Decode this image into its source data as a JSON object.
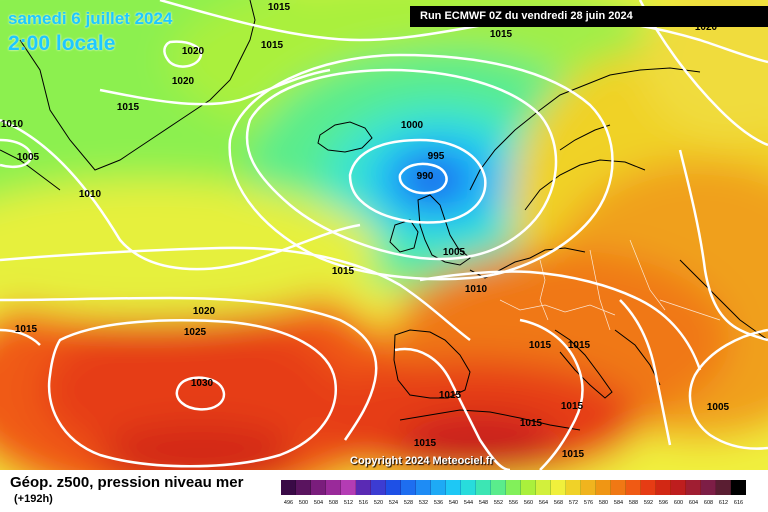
{
  "header": {
    "date": "samedi 6 juillet 2024",
    "time": "2:00 locale",
    "run": "Run ECMWF 0Z du vendredi 28 juin 2024"
  },
  "footer": {
    "parameter": "Géop. z500, pression niveau mer",
    "lead": "(+192h)",
    "copyright": "Copyright 2024 Meteociel.fr"
  },
  "colors": {
    "low_core": "#1e5ad2",
    "high_core": "#e61e14",
    "isobar": "#ffffff",
    "coastline": "#000000"
  },
  "scale": {
    "labels": [
      "496",
      "500",
      "504",
      "508",
      "512",
      "516",
      "520",
      "524",
      "528",
      "532",
      "536",
      "540",
      "544",
      "548",
      "552",
      "556",
      "560",
      "564",
      "568",
      "572",
      "576",
      "580",
      "584",
      "588",
      "592",
      "596",
      "600",
      "604",
      "608",
      "612",
      "616"
    ],
    "colors": [
      "#3a0a46",
      "#5a145f",
      "#7a1d7c",
      "#9a2a9a",
      "#b43cb4",
      "#5a2ab4",
      "#3c3cd2",
      "#1e50e6",
      "#1e6ef0",
      "#1e8cf5",
      "#1eaaf5",
      "#1ec8f5",
      "#28dcdc",
      "#3ce6b4",
      "#5aec8c",
      "#82f05a",
      "#aaf03c",
      "#d2f03c",
      "#f0f03c",
      "#f0d228",
      "#f0b41e",
      "#f09614",
      "#f07814",
      "#f05a14",
      "#e63c14",
      "#d22814",
      "#be1e1e",
      "#a01e32",
      "#7d1e46",
      "#5a1e32",
      "#000000"
    ]
  },
  "isobars": [
    {
      "value": "1015",
      "label_pos": "top-center"
    },
    {
      "value": "1020",
      "label_pos": "top-left"
    },
    {
      "value": "1020",
      "label_pos": "top-right"
    },
    {
      "value": "1010",
      "label_pos": "left"
    },
    {
      "value": "1005",
      "label_pos": "left"
    },
    {
      "value": "1010",
      "label_pos": "west-atlantic"
    },
    {
      "value": "1015",
      "label_pos": "north-atlantic"
    },
    {
      "value": "1015",
      "label_pos": "greenland"
    },
    {
      "value": "1000",
      "label_pos": "iceland"
    },
    {
      "value": "995",
      "label_pos": "low"
    },
    {
      "value": "990",
      "label_pos": "low-center"
    },
    {
      "value": "1005",
      "label_pos": "britain"
    },
    {
      "value": "1010",
      "label_pos": "channel"
    },
    {
      "value": "1015",
      "label_pos": "mid-atlantic"
    },
    {
      "value": "1020",
      "label_pos": "azores-north"
    },
    {
      "value": "1025",
      "label_pos": "azores"
    },
    {
      "value": "1030",
      "label_pos": "azores-center"
    },
    {
      "value": "1015",
      "label_pos": "far-left"
    },
    {
      "value": "1015",
      "label_pos": "italy"
    },
    {
      "value": "1015",
      "label_pos": "spain"
    },
    {
      "value": "1015",
      "label_pos": "balearics"
    },
    {
      "value": "1015",
      "label_pos": "algeria"
    },
    {
      "value": "1015",
      "label_pos": "greece"
    },
    {
      "value": "1015",
      "label_pos": "tunisia"
    },
    {
      "value": "1015",
      "label_pos": "libya"
    },
    {
      "value": "1005",
      "label_pos": "turkey"
    },
    {
      "value": "1015",
      "label_pos": "north-top"
    },
    {
      "value": "1020",
      "label_pos": "scandinavia-top"
    }
  ]
}
